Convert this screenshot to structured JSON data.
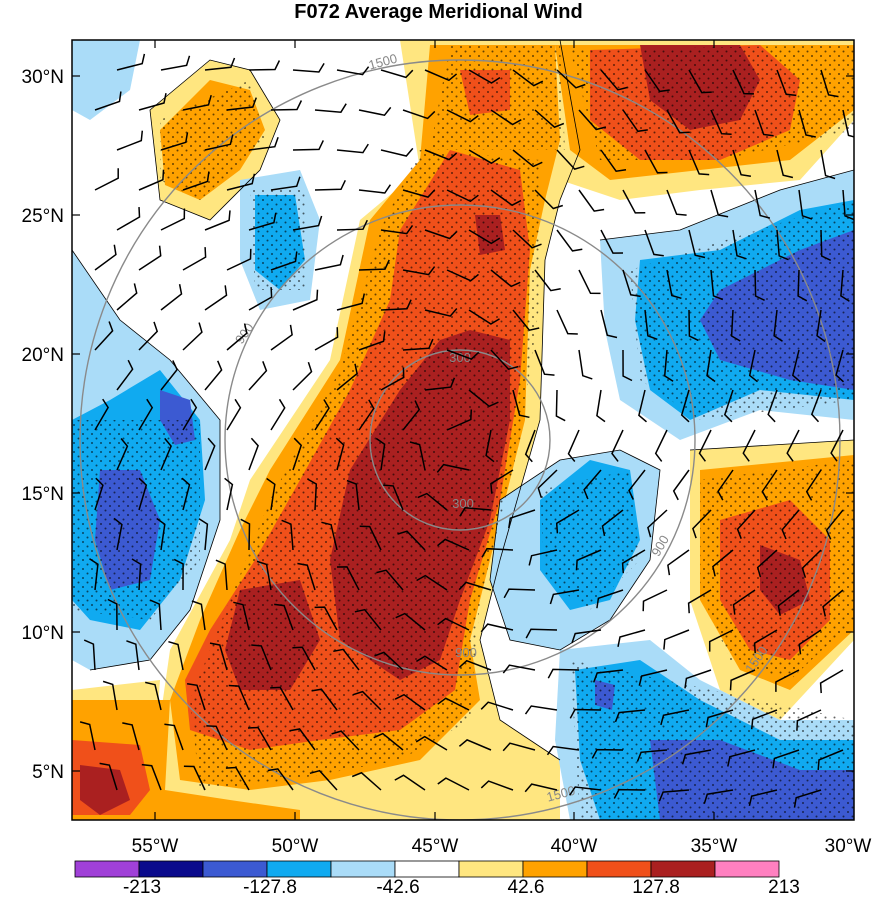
{
  "title": "F072 Average Meridional Wind",
  "map": {
    "lat_ticks": [
      "30°N",
      "25°N",
      "20°N",
      "15°N",
      "10°N",
      "5°N"
    ],
    "lon_ticks": [
      "55°W",
      "50°W",
      "45°W",
      "40°W",
      "35°W",
      "30°W"
    ],
    "range_rings": [
      {
        "label": "300"
      },
      {
        "label": "900"
      },
      {
        "label": "1500"
      }
    ]
  },
  "colorbar": {
    "colors": [
      "#a040d8",
      "#0a0a8c",
      "#3c5ad2",
      "#10aaf0",
      "#aadcf8",
      "#ffffff",
      "#ffe680",
      "#ffa200",
      "#f0501a",
      "#aa2020",
      "#ff80c0"
    ],
    "labels": [
      "-213",
      "-127.8",
      "-42.6",
      "42.6",
      "127.8",
      "213"
    ]
  },
  "colors": {
    "strong_pos": "#aa2020",
    "pos": "#f0501a",
    "mid_pos": "#ffa200",
    "weak_pos": "#ffe680",
    "weak_neg": "#aadcf8",
    "neg": "#10aaf0",
    "strong_neg": "#3c5ad2"
  }
}
